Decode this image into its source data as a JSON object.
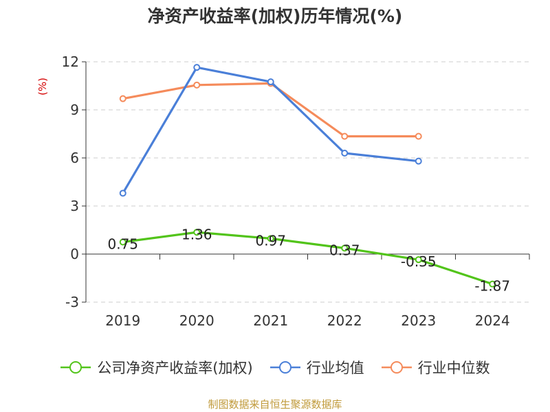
{
  "chart_data": {
    "type": "line",
    "title": "净资产收益率(加权)历年情况(%)",
    "ylabel": "(%)",
    "xlabel": "",
    "categories": [
      "2019",
      "2020",
      "2021",
      "2022",
      "2023",
      "2024"
    ],
    "ylim": [
      -3,
      12
    ],
    "yticks": [
      "-3",
      "0",
      "3",
      "6",
      "9",
      "12"
    ],
    "grid": true,
    "legend_position": "bottom",
    "series": [
      {
        "name": "公司净资产收益率(加权)",
        "color": "#52c41a",
        "values": [
          0.75,
          1.36,
          0.97,
          0.37,
          -0.35,
          -1.87
        ],
        "labels": [
          "0.75",
          "1.36",
          "0.97",
          "0.37",
          "-0.35",
          "-1.87"
        ]
      },
      {
        "name": "行业均值",
        "color": "#4a7fd8",
        "values": [
          3.8,
          11.65,
          10.75,
          6.3,
          5.8,
          null
        ]
      },
      {
        "name": "行业中位数",
        "color": "#f58b5b",
        "values": [
          9.7,
          10.55,
          10.65,
          7.35,
          7.35,
          null
        ]
      }
    ]
  },
  "source": "制图数据来自恒生聚源数据库"
}
